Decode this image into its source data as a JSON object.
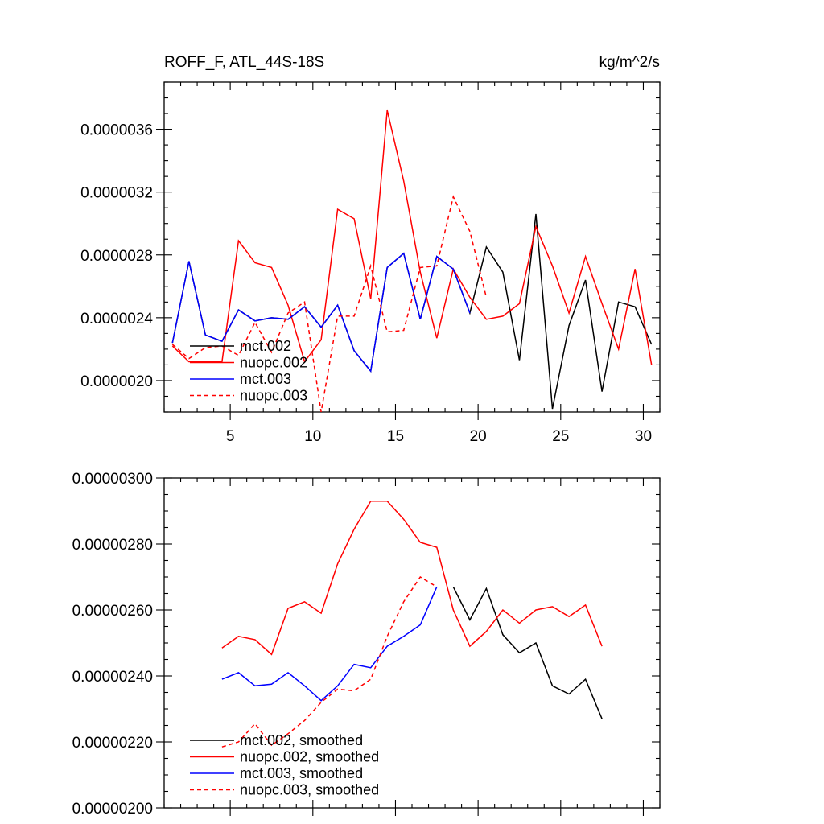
{
  "chart_data": [
    {
      "type": "line",
      "title": "ROFF_F, ATL_44S-18S",
      "units": "kg/m^2/s",
      "xlim": [
        1,
        31
      ],
      "ylim": [
        1.8e-06,
        3.9e-06
      ],
      "xticks": [
        5,
        10,
        15,
        20,
        25,
        30
      ],
      "xtick_labels": [
        "5",
        "10",
        "15",
        "20",
        "25",
        "30"
      ],
      "yticks": [
        2e-06,
        2.4e-06,
        2.8e-06,
        3.2e-06,
        3.6e-06
      ],
      "ytick_labels": [
        "0.0000020",
        "0.0000024",
        "0.0000028",
        "0.0000032",
        "0.0000036"
      ],
      "series": [
        {
          "name": "mct.002",
          "color": "#000000",
          "dash": "solid",
          "x": [
            1.5,
            2.5,
            3.5,
            4.5,
            5.5,
            6.5,
            7.5,
            8.5,
            9.5,
            10.5,
            11.5,
            12.5,
            13.5,
            14.5,
            15.5,
            16.5,
            17.5,
            18.5,
            19.5,
            20.5,
            21.5,
            22.5,
            23.5,
            24.5,
            25.5,
            26.5,
            27.5,
            28.5,
            29.5,
            30.5
          ],
          "values": [
            2.24e-06,
            2.76e-06,
            2.29e-06,
            2.25e-06,
            2.45e-06,
            2.38e-06,
            2.4e-06,
            2.39e-06,
            2.47e-06,
            2.34e-06,
            2.48e-06,
            2.19e-06,
            2.06e-06,
            2.72e-06,
            2.81e-06,
            2.39e-06,
            2.79e-06,
            2.71e-06,
            2.43e-06,
            2.85e-06,
            2.69e-06,
            2.13e-06,
            3.06e-06,
            1.82e-06,
            2.35e-06,
            2.64e-06,
            1.93e-06,
            2.5e-06,
            2.47e-06,
            2.23e-06
          ]
        },
        {
          "name": "nuopc.002",
          "color": "#ff0000",
          "dash": "solid",
          "x": [
            1.5,
            2.5,
            3.5,
            4.5,
            5.5,
            6.5,
            7.5,
            8.5,
            9.5,
            10.5,
            11.5,
            12.5,
            13.5,
            14.5,
            15.5,
            16.5,
            17.5,
            18.5,
            19.5,
            20.5,
            21.5,
            22.5,
            23.5,
            24.5,
            25.5,
            26.5,
            27.5,
            28.5,
            29.5,
            30.5
          ],
          "values": [
            2.22e-06,
            2.12e-06,
            2.12e-06,
            2.12e-06,
            2.89e-06,
            2.75e-06,
            2.72e-06,
            2.48e-06,
            2.12e-06,
            2.26e-06,
            3.09e-06,
            3.03e-06,
            2.52e-06,
            3.72e-06,
            3.27e-06,
            2.69e-06,
            2.27e-06,
            2.71e-06,
            2.53e-06,
            2.39e-06,
            2.41e-06,
            2.49e-06,
            2.98e-06,
            2.73e-06,
            2.43e-06,
            2.79e-06,
            2.49e-06,
            2.2e-06,
            2.71e-06,
            2.1e-06
          ]
        },
        {
          "name": "mct.003",
          "color": "#0000ff",
          "dash": "solid",
          "x": [
            1.5,
            2.5,
            3.5,
            4.5,
            5.5,
            6.5,
            7.5,
            8.5,
            9.5,
            10.5,
            11.5,
            12.5,
            13.5,
            14.5,
            15.5,
            16.5,
            17.5,
            18.5,
            19.5
          ],
          "values": [
            2.24e-06,
            2.76e-06,
            2.29e-06,
            2.25e-06,
            2.45e-06,
            2.38e-06,
            2.4e-06,
            2.39e-06,
            2.47e-06,
            2.34e-06,
            2.48e-06,
            2.19e-06,
            2.06e-06,
            2.72e-06,
            2.81e-06,
            2.39e-06,
            2.79e-06,
            2.71e-06,
            2.43e-06
          ]
        },
        {
          "name": "nuopc.003",
          "color": "#ff0000",
          "dash": "dashed",
          "x": [
            1.5,
            2.5,
            3.5,
            4.5,
            5.5,
            6.5,
            7.5,
            8.5,
            9.5,
            10.5,
            11.5,
            12.5,
            13.5,
            14.5,
            15.5,
            16.5,
            17.5,
            18.5,
            19.5,
            20.5
          ],
          "values": [
            2.23e-06,
            2.14e-06,
            2.21e-06,
            2.22e-06,
            2.16e-06,
            2.37e-06,
            2.18e-06,
            2.43e-06,
            2.5e-06,
            1.8e-06,
            2.41e-06,
            2.41e-06,
            2.73e-06,
            2.31e-06,
            2.32e-06,
            2.72e-06,
            2.73e-06,
            3.17e-06,
            2.95e-06,
            2.53e-06
          ]
        }
      ],
      "legend": {
        "position": "bottom-left",
        "entries": [
          "mct.002",
          "nuopc.002",
          "mct.003",
          "nuopc.003"
        ]
      }
    },
    {
      "type": "line",
      "title": "",
      "xlim": [
        1,
        31
      ],
      "ylim": [
        2e-06,
        3e-06
      ],
      "xticks": [
        5,
        10,
        15,
        20,
        25,
        30
      ],
      "yticks": [
        2e-06,
        2.2e-06,
        2.4e-06,
        2.6e-06,
        2.8e-06,
        3e-06
      ],
      "ytick_labels": [
        "0.00000200",
        "0.00000220",
        "0.00000240",
        "0.00000260",
        "0.00000280",
        "0.00000300"
      ],
      "series": [
        {
          "name": "mct.002, smoothed",
          "color": "#000000",
          "dash": "solid",
          "x": [
            18.5,
            19.5,
            20.5,
            21.5,
            22.5,
            23.5,
            24.5,
            25.5,
            26.5,
            27.5
          ],
          "values": [
            2.67e-06,
            2.57e-06,
            2.665e-06,
            2.525e-06,
            2.47e-06,
            2.5e-06,
            2.37e-06,
            2.345e-06,
            2.39e-06,
            2.27e-06
          ]
        },
        {
          "name": "nuopc.002, smoothed",
          "color": "#ff0000",
          "dash": "solid",
          "x": [
            4.5,
            5.5,
            6.5,
            7.5,
            8.5,
            9.5,
            10.5,
            11.5,
            12.5,
            13.5,
            14.5,
            15.5,
            16.5,
            17.5,
            18.5,
            19.5,
            20.5,
            21.5,
            22.5,
            23.5,
            24.5,
            25.5,
            26.5,
            27.5
          ],
          "values": [
            2.485e-06,
            2.52e-06,
            2.51e-06,
            2.465e-06,
            2.605e-06,
            2.625e-06,
            2.59e-06,
            2.74e-06,
            2.845e-06,
            2.93e-06,
            2.93e-06,
            2.875e-06,
            2.805e-06,
            2.79e-06,
            2.6e-06,
            2.49e-06,
            2.535e-06,
            2.6e-06,
            2.56e-06,
            2.6e-06,
            2.61e-06,
            2.58e-06,
            2.615e-06,
            2.49e-06
          ]
        },
        {
          "name": "mct.003, smoothed",
          "color": "#0000ff",
          "dash": "solid",
          "x": [
            4.5,
            5.5,
            6.5,
            7.5,
            8.5,
            9.5,
            10.5,
            11.5,
            12.5,
            13.5,
            14.5,
            15.5,
            16.5,
            17.5
          ],
          "values": [
            2.39e-06,
            2.41e-06,
            2.37e-06,
            2.375e-06,
            2.41e-06,
            2.37e-06,
            2.325e-06,
            2.37e-06,
            2.435e-06,
            2.425e-06,
            2.49e-06,
            2.52e-06,
            2.555e-06,
            2.67e-06
          ]
        },
        {
          "name": "nuopc.003, smoothed",
          "color": "#ff0000",
          "dash": "dashed",
          "x": [
            4.5,
            5.5,
            6.5,
            7.5,
            8.5,
            9.5,
            10.5,
            11.5,
            12.5,
            13.5,
            14.5,
            15.5,
            16.5,
            17.5
          ],
          "values": [
            2.185e-06,
            2.2e-06,
            2.255e-06,
            2.19e-06,
            2.225e-06,
            2.265e-06,
            2.32e-06,
            2.36e-06,
            2.355e-06,
            2.39e-06,
            2.52e-06,
            2.625e-06,
            2.7e-06,
            2.67e-06
          ]
        }
      ],
      "legend": {
        "position": "bottom-left",
        "entries": [
          "mct.002, smoothed",
          "nuopc.002, smoothed",
          "mct.003, smoothed",
          "nuopc.003, smoothed"
        ]
      }
    }
  ]
}
